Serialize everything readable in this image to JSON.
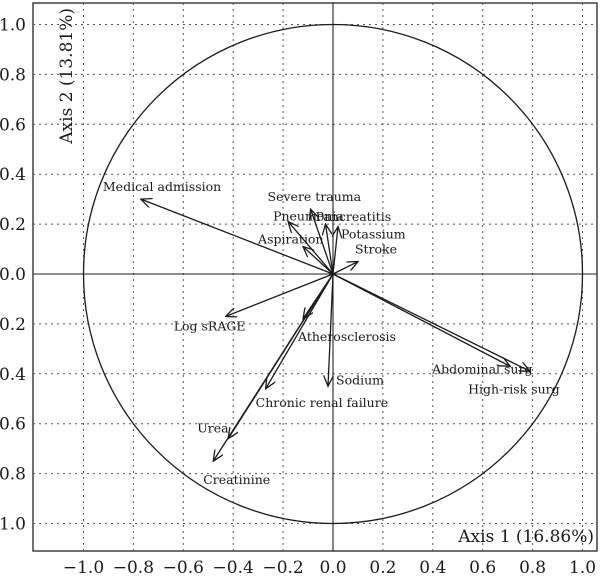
{
  "chart_data": {
    "type": "scatter",
    "subtype": "pca-correlation-circle",
    "title": "",
    "xlabel": "Axis 1 (16.86%)",
    "ylabel": "Axis 2 (13.81%)",
    "xlim": [
      -1.1,
      1.05
    ],
    "ylim": [
      -1.1,
      1.1
    ],
    "grid": true,
    "x_ticks": [
      {
        "value": -1.0,
        "label": "−1.0"
      },
      {
        "value": -0.8,
        "label": "−0.8"
      },
      {
        "value": -0.6,
        "label": "−0.6"
      },
      {
        "value": -0.4,
        "label": "−0.4"
      },
      {
        "value": -0.2,
        "label": "−0.2"
      },
      {
        "value": 0.0,
        "label": "0.0"
      },
      {
        "value": 0.2,
        "label": "0.2"
      },
      {
        "value": 0.4,
        "label": "0.4"
      },
      {
        "value": 0.6,
        "label": "0.6"
      },
      {
        "value": 0.8,
        "label": "0.8"
      },
      {
        "value": 1.0,
        "label": "1.0"
      }
    ],
    "y_ticks": [
      {
        "value": 1.0,
        "label": "1.0"
      },
      {
        "value": 0.8,
        "label": "0.8"
      },
      {
        "value": 0.6,
        "label": "0.6"
      },
      {
        "value": 0.4,
        "label": "0.4"
      },
      {
        "value": 0.2,
        "label": "0.2"
      },
      {
        "value": 0.0,
        "label": "0.0"
      },
      {
        "value": -0.2,
        "label": "−0.2"
      },
      {
        "value": -0.4,
        "label": "−0.4"
      },
      {
        "value": -0.6,
        "label": "−0.6"
      },
      {
        "value": -0.8,
        "label": "−0.8"
      },
      {
        "value": -1.0,
        "label": "−1.0"
      }
    ],
    "variables": [
      {
        "label": "Medical admission",
        "x": -0.77,
        "y": 0.3
      },
      {
        "label": "Severe trauma",
        "x": -0.09,
        "y": 0.26
      },
      {
        "label": "Pneumonia",
        "x": -0.18,
        "y": 0.21
      },
      {
        "label": "Pancreatitis",
        "x": -0.03,
        "y": 0.2
      },
      {
        "label": "Potassium",
        "x": 0.02,
        "y": 0.19
      },
      {
        "label": "Aspiration",
        "x": -0.12,
        "y": 0.11
      },
      {
        "label": "Stroke",
        "x": 0.1,
        "y": 0.05
      },
      {
        "label": "Log sRAGE",
        "x": -0.43,
        "y": -0.17
      },
      {
        "label": "Atherosclerosis",
        "x": -0.12,
        "y": -0.18
      },
      {
        "label": "Abdominal surg",
        "x": 0.71,
        "y": -0.37
      },
      {
        "label": "High-risk surg",
        "x": 0.79,
        "y": -0.39
      },
      {
        "label": "Sodium",
        "x": -0.02,
        "y": -0.45
      },
      {
        "label": "Chronic renal failure",
        "x": -0.27,
        "y": -0.46
      },
      {
        "label": "Urea",
        "x": -0.42,
        "y": -0.66
      },
      {
        "label": "Creatinine",
        "x": -0.48,
        "y": -0.75
      }
    ]
  }
}
